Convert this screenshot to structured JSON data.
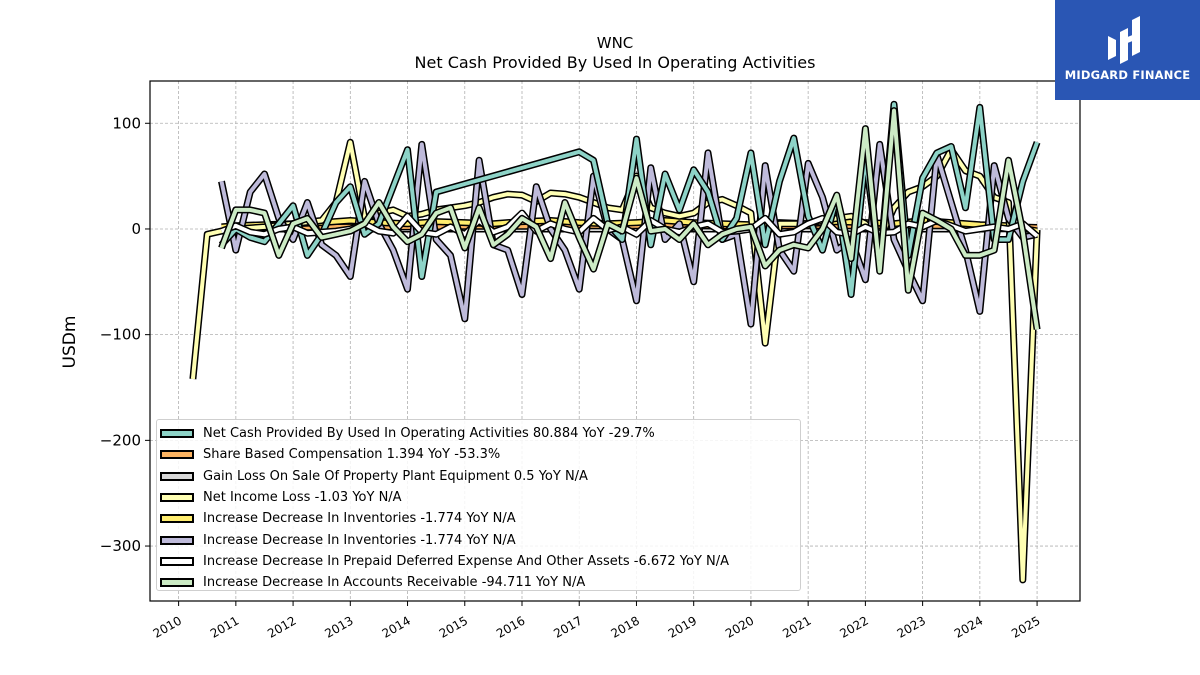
{
  "brand": {
    "name": "MIDGARD FINANCE",
    "bg_color": "#2a56b4"
  },
  "chart_data": {
    "type": "line",
    "title": "WNC",
    "subtitle": "Net Cash Provided By Used In Operating Activities",
    "xlabel": "",
    "ylabel": "USDm",
    "xlim": [
      2009.5,
      2025.75
    ],
    "ylim": [
      -352,
      140
    ],
    "yticks": [
      100,
      0,
      -100,
      -200,
      -300
    ],
    "ytick_labels": [
      "100",
      "0",
      "−100",
      "−200",
      "−300"
    ],
    "xticks": [
      "2010",
      "2011",
      "2012",
      "2013",
      "2014",
      "2015",
      "2016",
      "2017",
      "2018",
      "2019",
      "2020",
      "2021",
      "2022",
      "2023",
      "2024",
      "2025"
    ],
    "grid": true,
    "legend_position": "lower-left",
    "series": [
      {
        "name": "Net Cash Provided By Used In Operating Activities",
        "legend": "Net Cash Provided By Used In Operating Activities  80.884 YoY -29.7%",
        "color": "#8dd3c7",
        "order": 4,
        "x": [
          2010.75,
          2011.0,
          2011.25,
          2011.5,
          2011.75,
          2012.0,
          2012.25,
          2012.5,
          2012.75,
          2013.0,
          2013.25,
          2013.5,
          2013.75,
          2014.0,
          2014.25,
          2014.5,
          2017.0,
          2017.25,
          2017.5,
          2017.75,
          2018.0,
          2018.25,
          2018.5,
          2018.75,
          2019.0,
          2019.25,
          2019.5,
          2019.75,
          2020.0,
          2020.25,
          2020.5,
          2020.75,
          2021.0,
          2021.25,
          2021.5,
          2021.75,
          2022.0,
          2022.25,
          2022.5,
          2022.75,
          2023.0,
          2023.25,
          2023.5,
          2023.75,
          2024.0,
          2024.25,
          2024.5,
          2024.75,
          2025.0
        ],
        "y": [
          -15,
          0,
          -8,
          -12,
          5,
          22,
          -25,
          -5,
          25,
          40,
          -5,
          5,
          40,
          75,
          -45,
          35,
          73,
          65,
          5,
          -10,
          85,
          -15,
          52,
          18,
          56,
          35,
          -10,
          10,
          72,
          -15,
          45,
          86,
          12,
          -20,
          30,
          -62,
          68,
          -35,
          118,
          -25,
          48,
          72,
          78,
          20,
          115,
          -10,
          -10,
          45,
          82
        ]
      },
      {
        "name": "Share Based Compensation",
        "legend": "Share Based Compensation  1.394 YoY -53.3%",
        "color": "#fdb462",
        "order": 1,
        "x": [
          2010.75,
          2011.0,
          2012.0,
          2013.0,
          2014.0,
          2015.0,
          2016.0,
          2017.0,
          2018.0,
          2019.0,
          2020.0,
          2021.0,
          2022.0,
          2023.0,
          2024.0,
          2025.0
        ],
        "y": [
          1,
          1,
          1.5,
          2,
          2,
          2.5,
          2.5,
          3,
          3,
          3,
          2.5,
          3,
          3,
          3,
          3,
          1.4
        ]
      },
      {
        "name": "Gain Loss On Sale Of Property Plant Equipment",
        "legend": "Gain Loss On Sale Of Property Plant Equipment  0.5 YoY N/A",
        "color": "#d9d9d9",
        "order": 0,
        "x": [
          2010.75,
          2012.0,
          2014.0,
          2016.0,
          2018.0,
          2020.0,
          2022.0,
          2024.0,
          2025.0
        ],
        "y": [
          0,
          0,
          0,
          0,
          0,
          0,
          0,
          0,
          0.5
        ]
      },
      {
        "name": "Net Income Loss",
        "legend": "Net Income Loss  -1.03 YoY N/A",
        "color": "#ffffb3",
        "order": 2,
        "x": [
          2010.25,
          2010.5,
          2010.75,
          2011.0,
          2011.5,
          2012.0,
          2012.5,
          2012.75,
          2013.0,
          2013.25,
          2013.5,
          2013.75,
          2014.0,
          2014.25,
          2014.5,
          2014.75,
          2015.0,
          2015.25,
          2015.5,
          2015.75,
          2016.0,
          2016.25,
          2016.5,
          2016.75,
          2017.0,
          2017.25,
          2017.5,
          2017.75,
          2018.0,
          2018.25,
          2018.5,
          2018.75,
          2019.0,
          2019.25,
          2019.5,
          2019.75,
          2020.0,
          2020.25,
          2020.5,
          2020.75,
          2021.0,
          2021.25,
          2021.5,
          2021.75,
          2022.0,
          2022.25,
          2022.5,
          2022.75,
          2023.0,
          2023.25,
          2023.5,
          2023.75,
          2024.0,
          2024.25,
          2024.5,
          2024.75,
          2025.0
        ],
        "y": [
          -142,
          -5,
          -2,
          0,
          2,
          5,
          8,
          25,
          82,
          10,
          15,
          18,
          12,
          14,
          18,
          20,
          22,
          25,
          30,
          33,
          32,
          26,
          34,
          33,
          30,
          25,
          20,
          18,
          50,
          20,
          15,
          12,
          15,
          25,
          28,
          22,
          15,
          -108,
          5,
          5,
          5,
          8,
          10,
          12,
          5,
          -10,
          20,
          35,
          40,
          50,
          75,
          55,
          50,
          30,
          25,
          -332,
          -1
        ]
      },
      {
        "name": "Increase Decrease In Inventories",
        "legend": "Increase Decrease In Inventories  -1.774 YoY N/A",
        "color": "#ffed6f",
        "order": 1,
        "x": [
          2010.75,
          2011.0,
          2011.5,
          2012.0,
          2012.5,
          2013.0,
          2013.5,
          2014.0,
          2014.5,
          2015.0,
          2015.5,
          2016.0,
          2016.5,
          2017.0,
          2017.5,
          2018.0,
          2018.5,
          2019.0,
          2019.5,
          2020.0,
          2020.5,
          2021.0,
          2021.5,
          2022.0,
          2022.5,
          2023.0,
          2023.5,
          2024.0,
          2024.5,
          2025.0
        ],
        "y": [
          2,
          3,
          4,
          5,
          6,
          8,
          6,
          5,
          7,
          6,
          5,
          7,
          8,
          6,
          5,
          6,
          8,
          6,
          5,
          4,
          6,
          5,
          7,
          6,
          5,
          8,
          6,
          4,
          3,
          -1.8
        ]
      },
      {
        "name": "Increase Decrease In Inventories",
        "legend": "Increase Decrease In Inventories  -1.774 YoY N/A",
        "color": "#bebada",
        "order": 3,
        "x": [
          2010.75,
          2011.0,
          2011.25,
          2011.5,
          2011.75,
          2012.0,
          2012.25,
          2012.5,
          2012.75,
          2013.0,
          2013.25,
          2013.5,
          2013.75,
          2014.0,
          2014.25,
          2014.5,
          2014.75,
          2015.0,
          2015.25,
          2015.5,
          2015.75,
          2016.0,
          2016.25,
          2016.5,
          2016.75,
          2017.0,
          2017.25,
          2017.5,
          2017.75,
          2018.0,
          2018.25,
          2018.5,
          2018.75,
          2019.0,
          2019.25,
          2019.5,
          2019.75,
          2020.0,
          2020.25,
          2020.5,
          2020.75,
          2021.0,
          2021.25,
          2021.5,
          2021.75,
          2022.0,
          2022.25,
          2022.5,
          2022.75,
          2023.0,
          2023.25,
          2023.5,
          2023.75,
          2024.0,
          2024.25,
          2024.5,
          2024.75,
          2025.0
        ],
        "y": [
          45,
          -20,
          35,
          52,
          10,
          -10,
          25,
          -15,
          -25,
          -45,
          45,
          5,
          -20,
          -57,
          80,
          -10,
          -25,
          -85,
          65,
          -15,
          -20,
          -62,
          40,
          0,
          -20,
          -57,
          50,
          0,
          -10,
          -68,
          58,
          -10,
          5,
          -50,
          72,
          -10,
          -5,
          -90,
          60,
          -20,
          -40,
          62,
          30,
          -20,
          -10,
          -48,
          80,
          -10,
          -40,
          -68,
          70,
          25,
          -20,
          -78,
          60,
          10,
          -8,
          -5
        ]
      },
      {
        "name": "Increase Decrease In Prepaid Deferred Expense And Other Assets",
        "legend": "Increase Decrease In Prepaid Deferred Expense And Other Assets  -6.672 YoY N/A",
        "color": "#ffffff",
        "order": 5,
        "x": [
          2010.75,
          2011.0,
          2011.25,
          2011.5,
          2011.75,
          2012.0,
          2012.25,
          2012.5,
          2012.75,
          2013.0,
          2013.25,
          2013.5,
          2013.75,
          2014.0,
          2014.25,
          2014.5,
          2014.75,
          2015.0,
          2015.25,
          2015.5,
          2015.75,
          2016.0,
          2016.25,
          2016.5,
          2016.75,
          2017.0,
          2017.25,
          2017.5,
          2017.75,
          2018.0,
          2018.25,
          2018.5,
          2018.75,
          2019.0,
          2019.25,
          2019.5,
          2019.75,
          2020.0,
          2020.25,
          2020.5,
          2020.75,
          2021.0,
          2021.25,
          2021.5,
          2021.75,
          2022.0,
          2022.25,
          2022.5,
          2022.75,
          2023.0,
          2023.25,
          2023.5,
          2023.75,
          2024.0,
          2024.25,
          2024.5,
          2024.75,
          2025.0
        ],
        "y": [
          -2,
          3,
          -3,
          -5,
          0,
          2,
          -4,
          -3,
          -2,
          0,
          5,
          -2,
          -4,
          12,
          -3,
          -5,
          2,
          -5,
          8,
          -3,
          2,
          15,
          -2,
          5,
          0,
          -3,
          10,
          -1,
          2,
          -5,
          8,
          0,
          -3,
          2,
          5,
          -3,
          -2,
          0,
          10,
          -5,
          -3,
          5,
          10,
          -3,
          -5,
          2,
          -4,
          -3,
          5,
          2,
          8,
          3,
          -2,
          0,
          2,
          0,
          5,
          -6.7
        ]
      },
      {
        "name": "Increase Decrease In Accounts Receivable",
        "legend": "Increase Decrease In Accounts Receivable  -94.711 YoY N/A",
        "color": "#ccebc5",
        "order": 6,
        "x": [
          2010.75,
          2011.0,
          2011.25,
          2011.5,
          2011.75,
          2012.0,
          2012.25,
          2012.5,
          2012.75,
          2013.0,
          2013.25,
          2013.5,
          2013.75,
          2014.0,
          2014.25,
          2014.5,
          2014.75,
          2015.0,
          2015.25,
          2015.5,
          2015.75,
          2016.0,
          2016.25,
          2016.5,
          2016.75,
          2017.0,
          2017.25,
          2017.5,
          2017.75,
          2018.0,
          2018.25,
          2018.5,
          2018.75,
          2019.0,
          2019.25,
          2019.5,
          2019.75,
          2020.0,
          2020.25,
          2020.5,
          2020.75,
          2021.0,
          2021.25,
          2021.5,
          2021.75,
          2022.0,
          2022.25,
          2022.5,
          2022.75,
          2023.0,
          2023.25,
          2023.5,
          2023.75,
          2024.0,
          2024.25,
          2024.5,
          2024.75,
          2025.0
        ],
        "y": [
          -18,
          18,
          18,
          15,
          -25,
          5,
          10,
          -8,
          -5,
          -2,
          5,
          25,
          2,
          -12,
          -5,
          15,
          20,
          -18,
          20,
          -15,
          -5,
          10,
          2,
          -28,
          25,
          -8,
          -38,
          5,
          -2,
          48,
          -2,
          0,
          -10,
          5,
          -15,
          -5,
          0,
          2,
          -35,
          -20,
          -15,
          -18,
          0,
          32,
          -28,
          95,
          -40,
          112,
          -58,
          15,
          8,
          0,
          -25,
          -25,
          -20,
          65,
          -3,
          -95
        ]
      }
    ]
  }
}
